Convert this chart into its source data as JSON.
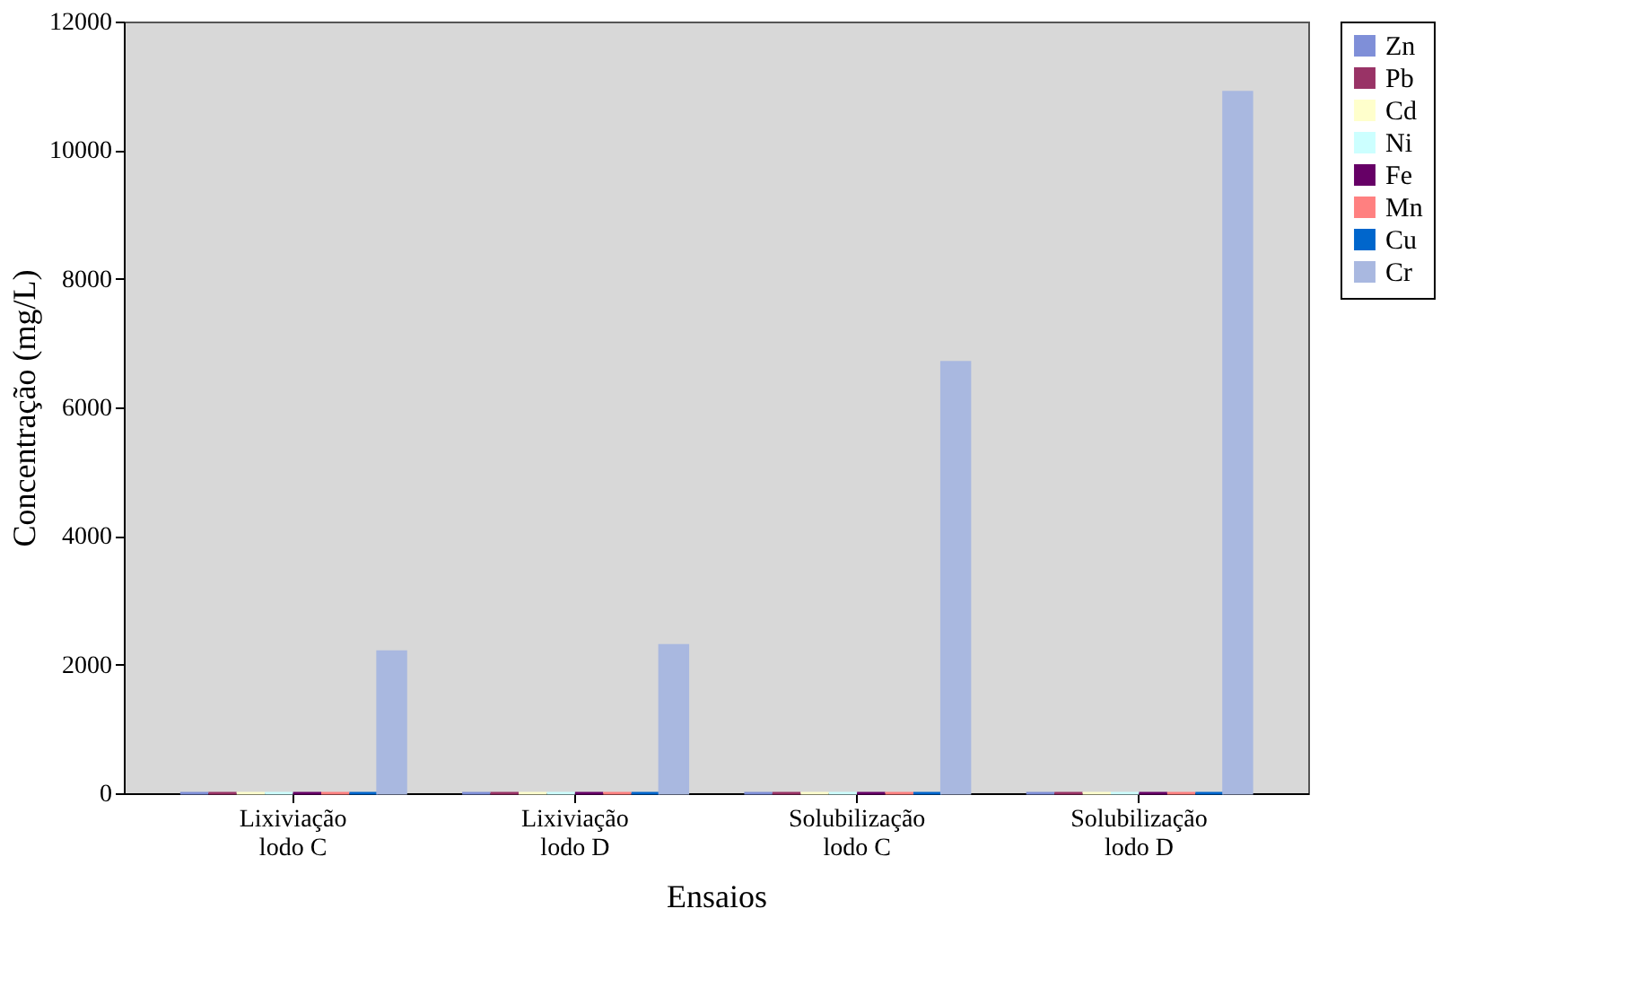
{
  "chart_data": {
    "type": "bar",
    "xlabel": "Ensaios",
    "ylabel": "Concentração (mg/L)",
    "categories": [
      "Lixiviação\nlodo C",
      "Lixiviação\nlodo D",
      "Solubilização\nlodo C",
      "Solubilização\nlodo D"
    ],
    "series": [
      {
        "name": "Zn",
        "color": "#7f8fd8",
        "values": [
          0,
          0,
          0,
          0
        ]
      },
      {
        "name": "Pb",
        "color": "#993366",
        "values": [
          0,
          0,
          0,
          0
        ]
      },
      {
        "name": "Cd",
        "color": "#ffffcc",
        "values": [
          0,
          0,
          0,
          0
        ]
      },
      {
        "name": "Ni",
        "color": "#ccffff",
        "values": [
          0,
          0,
          0,
          0
        ]
      },
      {
        "name": "Fe",
        "color": "#660066",
        "values": [
          0,
          0,
          0,
          0
        ]
      },
      {
        "name": "Mn",
        "color": "#ff8080",
        "values": [
          0,
          0,
          0,
          0
        ]
      },
      {
        "name": "Cu",
        "color": "#0066cc",
        "values": [
          0,
          0,
          0,
          0
        ]
      },
      {
        "name": "Cr",
        "color": "#a9b8e0",
        "values": [
          2200,
          2300,
          6700,
          10900
        ]
      }
    ],
    "ylim": [
      0,
      12000
    ],
    "yticks": [
      0,
      2000,
      4000,
      6000,
      8000,
      10000,
      12000
    ],
    "grid": false,
    "legend": "right"
  }
}
